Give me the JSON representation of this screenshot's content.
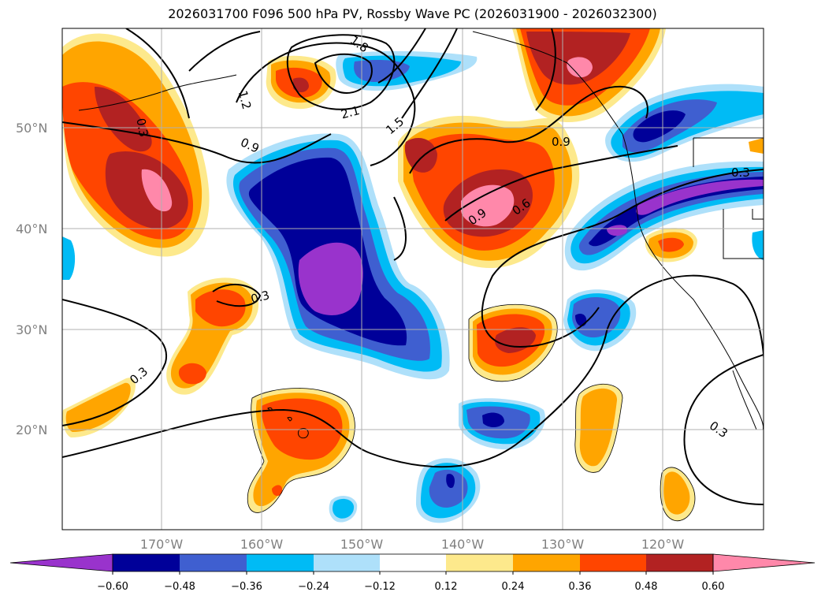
{
  "title": "2026031700 F096 500 hPa PV, Rossby Wave PC (2026031900 - 2026032300)",
  "map": {
    "lat_labels": [
      "50°N",
      "40°N",
      "30°N",
      "20°N"
    ],
    "lon_labels": [
      "170°W",
      "160°W",
      "150°W",
      "140°W",
      "130°W",
      "120°W"
    ],
    "contour_labels": [
      "1.8",
      "1.2",
      "2.1",
      "1.5",
      "0.3",
      "0.9",
      "0.9",
      "0.9",
      "0.6",
      "0.3",
      "0.3",
      "0.3",
      "0.3"
    ]
  },
  "colorbar": {
    "tick_labels": [
      "-0.60",
      "-0.48",
      "-0.36",
      "-0.24",
      "-0.12",
      "0.12",
      "0.24",
      "0.36",
      "0.48",
      "0.60"
    ],
    "colors": [
      "#9933cc",
      "#000099",
      "#3f5fd0",
      "#00bbf5",
      "#aee0fa",
      "#ffffff",
      "#fde98c",
      "#ffa500",
      "#ff4500",
      "#b22222",
      "#ff88aa"
    ]
  }
}
